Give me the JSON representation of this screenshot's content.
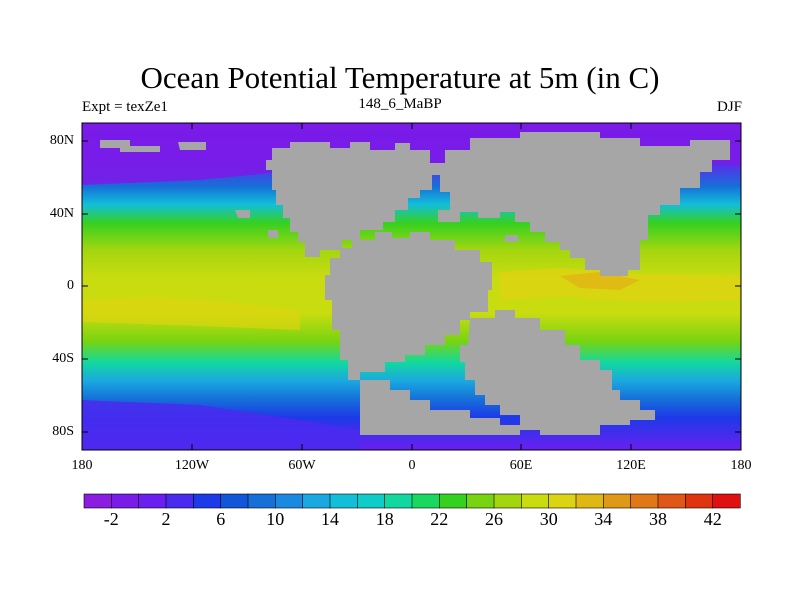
{
  "title": "Ocean Potential Temperature at 5m (in C)",
  "subtitle_left": "Expt = texZe1",
  "subtitle_center": "148_6_MaBP",
  "subtitle_right": "DJF",
  "lat_labels": [
    "80N",
    "40N",
    "0",
    "40S",
    "80S"
  ],
  "lon_labels": [
    "180",
    "120W",
    "60W",
    "0",
    "60E",
    "120E",
    "180"
  ],
  "colorbar": {
    "tick_labels": [
      "-2",
      "2",
      "6",
      "10",
      "14",
      "18",
      "22",
      "26",
      "30",
      "34",
      "38",
      "42"
    ],
    "colors": [
      "#8a1de0",
      "#7a1ce8",
      "#6a1ff0",
      "#4a2aee",
      "#1c3ae8",
      "#1155d8",
      "#1670d8",
      "#1a8ae0",
      "#1aa8e0",
      "#13bfd8",
      "#10ccc8",
      "#12d8a0",
      "#18d860",
      "#36d020",
      "#78d410",
      "#a4d610",
      "#c8dc10",
      "#dcd410",
      "#e0b814",
      "#e09818",
      "#e07818",
      "#e05818",
      "#e03410",
      "#e01010"
    ],
    "values_start": -4,
    "values_step": 2
  },
  "map": {
    "land_color": "#a6a6a6",
    "ocean_bands": [
      {
        "lat": 90,
        "color": "#7a1ce8"
      },
      {
        "lat": 70,
        "color": "#6a1ff0"
      },
      {
        "lat": 55,
        "color": "#1670d8"
      },
      {
        "lat": 45,
        "color": "#13bfd8"
      },
      {
        "lat": 35,
        "color": "#36d020"
      },
      {
        "lat": 20,
        "color": "#a4d610"
      },
      {
        "lat": 5,
        "color": "#c8dc10"
      },
      {
        "lat": -15,
        "color": "#c8dc10"
      },
      {
        "lat": -30,
        "color": "#78d410"
      },
      {
        "lat": -42,
        "color": "#12d8a0"
      },
      {
        "lat": -52,
        "color": "#1aa8e0"
      },
      {
        "lat": -62,
        "color": "#1670d8"
      },
      {
        "lat": -72,
        "color": "#1c3ae8"
      },
      {
        "lat": -90,
        "color": "#6a1ff0"
      }
    ]
  }
}
